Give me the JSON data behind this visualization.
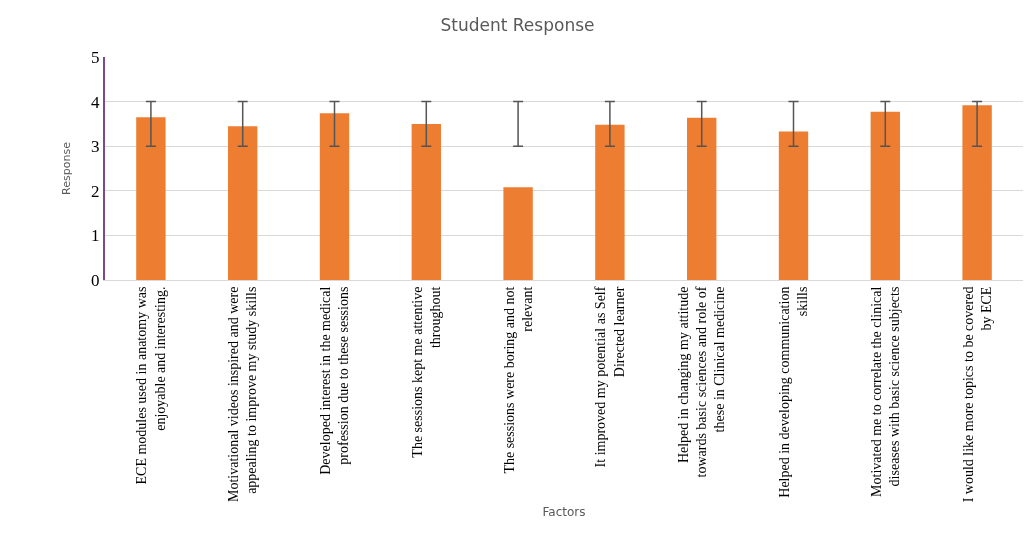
{
  "chart_data": {
    "type": "bar",
    "title": "Student Response",
    "xlabel": "Factors",
    "ylabel": "Response",
    "categories": [
      "ECE modules used in anatomy was\nenjoyable and interesting.",
      "Motivational videos inspired and were\nappealing to improve my study skills",
      "Developed interest in the medical\nprofession due to these sessions",
      "The sessions kept me attentive\nthroughout",
      "The sessions were boring and not\nrelevant",
      "It improved my potential as Self\nDirected learner",
      "Helped in changing my attitude\ntowards basic sciences and role of\nthese in Clinical medicine",
      "Helped in developing communication\nskills",
      "Motivated me to correlate the clinical\ndiseases with basic science subjects",
      "I would like more topics to be covered\nby ECE"
    ],
    "values": [
      3.65,
      3.45,
      3.74,
      3.5,
      2.08,
      3.48,
      3.64,
      3.33,
      3.77,
      3.92
    ],
    "errors": [
      [
        3,
        4
      ],
      [
        3,
        4
      ],
      [
        3,
        4
      ],
      [
        3,
        4
      ],
      [
        3,
        4
      ],
      [
        3,
        4
      ],
      [
        3,
        4
      ],
      [
        3,
        4
      ],
      [
        3,
        4
      ],
      [
        3,
        4
      ]
    ],
    "color": "#ed7d31",
    "ylim": [
      0,
      5
    ],
    "yticks": [
      0,
      1,
      2,
      3,
      4,
      5
    ],
    "grid": "y"
  }
}
